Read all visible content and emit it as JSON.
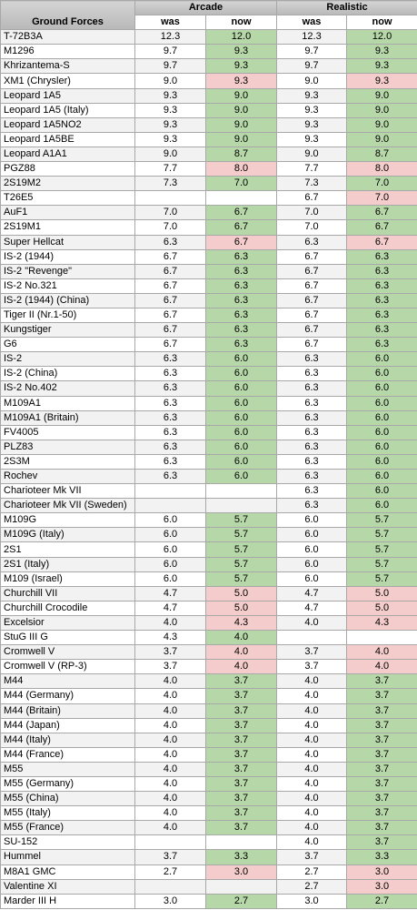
{
  "table": {
    "header": {
      "name": "Ground Forces",
      "groups": [
        "Arcade",
        "Realistic"
      ],
      "sub": [
        "was",
        "now",
        "was",
        "now"
      ]
    },
    "rows": [
      [
        "T-72B3A",
        "12.3",
        "12.0",
        "12.3",
        "12.0"
      ],
      [
        "M1296",
        "9.7",
        "9.3",
        "9.7",
        "9.3"
      ],
      [
        "Khrizantema-S",
        "9.7",
        "9.3",
        "9.7",
        "9.3"
      ],
      [
        "XM1 (Chrysler)",
        "9.0",
        "9.3",
        "9.0",
        "9.3"
      ],
      [
        "Leopard 1A5",
        "9.3",
        "9.0",
        "9.3",
        "9.0"
      ],
      [
        "Leopard 1A5 (Italy)",
        "9.3",
        "9.0",
        "9.3",
        "9.0"
      ],
      [
        "Leopard 1A5NO2",
        "9.3",
        "9.0",
        "9.3",
        "9.0"
      ],
      [
        "Leopard 1A5BE",
        "9.3",
        "9.0",
        "9.3",
        "9.0"
      ],
      [
        "Leopard A1A1",
        "9.0",
        "8.7",
        "9.0",
        "8.7"
      ],
      [
        "PGZ88",
        "7.7",
        "8.0",
        "7.7",
        "8.0"
      ],
      [
        "2S19M2",
        "7.3",
        "7.0",
        "7.3",
        "7.0"
      ],
      [
        "T26E5",
        null,
        null,
        "6.7",
        "7.0"
      ],
      [
        "AuF1",
        "7.0",
        "6.7",
        "7.0",
        "6.7"
      ],
      [
        "2S19M1",
        "7.0",
        "6.7",
        "7.0",
        "6.7"
      ],
      [
        "Super Hellcat",
        "6.3",
        "6.7",
        "6.3",
        "6.7"
      ],
      [
        "IS-2 (1944)",
        "6.7",
        "6.3",
        "6.7",
        "6.3"
      ],
      [
        "IS-2 \"Revenge\"",
        "6.7",
        "6.3",
        "6.7",
        "6.3"
      ],
      [
        "IS-2 No.321",
        "6.7",
        "6.3",
        "6.7",
        "6.3"
      ],
      [
        "IS-2 (1944) (China)",
        "6.7",
        "6.3",
        "6.7",
        "6.3"
      ],
      [
        "Tiger II (Nr.1-50)",
        "6.7",
        "6.3",
        "6.7",
        "6.3"
      ],
      [
        "Kungstiger",
        "6.7",
        "6.3",
        "6.7",
        "6.3"
      ],
      [
        "G6",
        "6.7",
        "6.3",
        "6.7",
        "6.3"
      ],
      [
        "IS-2",
        "6.3",
        "6.0",
        "6.3",
        "6.0"
      ],
      [
        "IS-2 (China)",
        "6.3",
        "6.0",
        "6.3",
        "6.0"
      ],
      [
        "IS-2 No.402",
        "6.3",
        "6.0",
        "6.3",
        "6.0"
      ],
      [
        "M109A1",
        "6.3",
        "6.0",
        "6.3",
        "6.0"
      ],
      [
        "M109A1 (Britain)",
        "6.3",
        "6.0",
        "6.3",
        "6.0"
      ],
      [
        "FV4005",
        "6.3",
        "6.0",
        "6.3",
        "6.0"
      ],
      [
        "PLZ83",
        "6.3",
        "6.0",
        "6.3",
        "6.0"
      ],
      [
        "2S3M",
        "6.3",
        "6.0",
        "6.3",
        "6.0"
      ],
      [
        "Rochev",
        "6.3",
        "6.0",
        "6.3",
        "6.0"
      ],
      [
        "Charioteer Mk VII",
        null,
        null,
        "6.3",
        "6.0"
      ],
      [
        "Charioteer Mk VII (Sweden)",
        null,
        null,
        "6.3",
        "6.0"
      ],
      [
        "M109G",
        "6.0",
        "5.7",
        "6.0",
        "5.7"
      ],
      [
        "M109G (Italy)",
        "6.0",
        "5.7",
        "6.0",
        "5.7"
      ],
      [
        "2S1",
        "6.0",
        "5.7",
        "6.0",
        "5.7"
      ],
      [
        "2S1 (Italy)",
        "6.0",
        "5.7",
        "6.0",
        "5.7"
      ],
      [
        "M109 (Israel)",
        "6.0",
        "5.7",
        "6.0",
        "5.7"
      ],
      [
        "Churchill VII",
        "4.7",
        "5.0",
        "4.7",
        "5.0"
      ],
      [
        "Churchill Crocodile",
        "4.7",
        "5.0",
        "4.7",
        "5.0"
      ],
      [
        "Excelsior",
        "4.0",
        "4.3",
        "4.0",
        "4.3"
      ],
      [
        "StuG III G",
        "4.3",
        "4.0",
        null,
        null
      ],
      [
        "Cromwell V",
        "3.7",
        "4.0",
        "3.7",
        "4.0"
      ],
      [
        "Cromwell V (RP-3)",
        "3.7",
        "4.0",
        "3.7",
        "4.0"
      ],
      [
        "M44",
        "4.0",
        "3.7",
        "4.0",
        "3.7"
      ],
      [
        "M44 (Germany)",
        "4.0",
        "3.7",
        "4.0",
        "3.7"
      ],
      [
        "M44 (Britain)",
        "4.0",
        "3.7",
        "4.0",
        "3.7"
      ],
      [
        "M44 (Japan)",
        "4.0",
        "3.7",
        "4.0",
        "3.7"
      ],
      [
        "M44 (Italy)",
        "4.0",
        "3.7",
        "4.0",
        "3.7"
      ],
      [
        "M44 (France)",
        "4.0",
        "3.7",
        "4.0",
        "3.7"
      ],
      [
        "M55",
        "4.0",
        "3.7",
        "4.0",
        "3.7"
      ],
      [
        "M55 (Germany)",
        "4.0",
        "3.7",
        "4.0",
        "3.7"
      ],
      [
        "M55 (China)",
        "4.0",
        "3.7",
        "4.0",
        "3.7"
      ],
      [
        "M55 (Italy)",
        "4.0",
        "3.7",
        "4.0",
        "3.7"
      ],
      [
        "M55 (France)",
        "4.0",
        "3.7",
        "4.0",
        "3.7"
      ],
      [
        "SU-152",
        null,
        null,
        "4.0",
        "3.7"
      ],
      [
        "Hummel",
        "3.7",
        "3.3",
        "3.7",
        "3.3"
      ],
      [
        "M8A1 GMC",
        "2.7",
        "3.0",
        "2.7",
        "3.0"
      ],
      [
        "Valentine XI",
        null,
        null,
        "2.7",
        "3.0"
      ],
      [
        "Marder III H",
        "3.0",
        "2.7",
        "3.0",
        "2.7"
      ]
    ]
  }
}
